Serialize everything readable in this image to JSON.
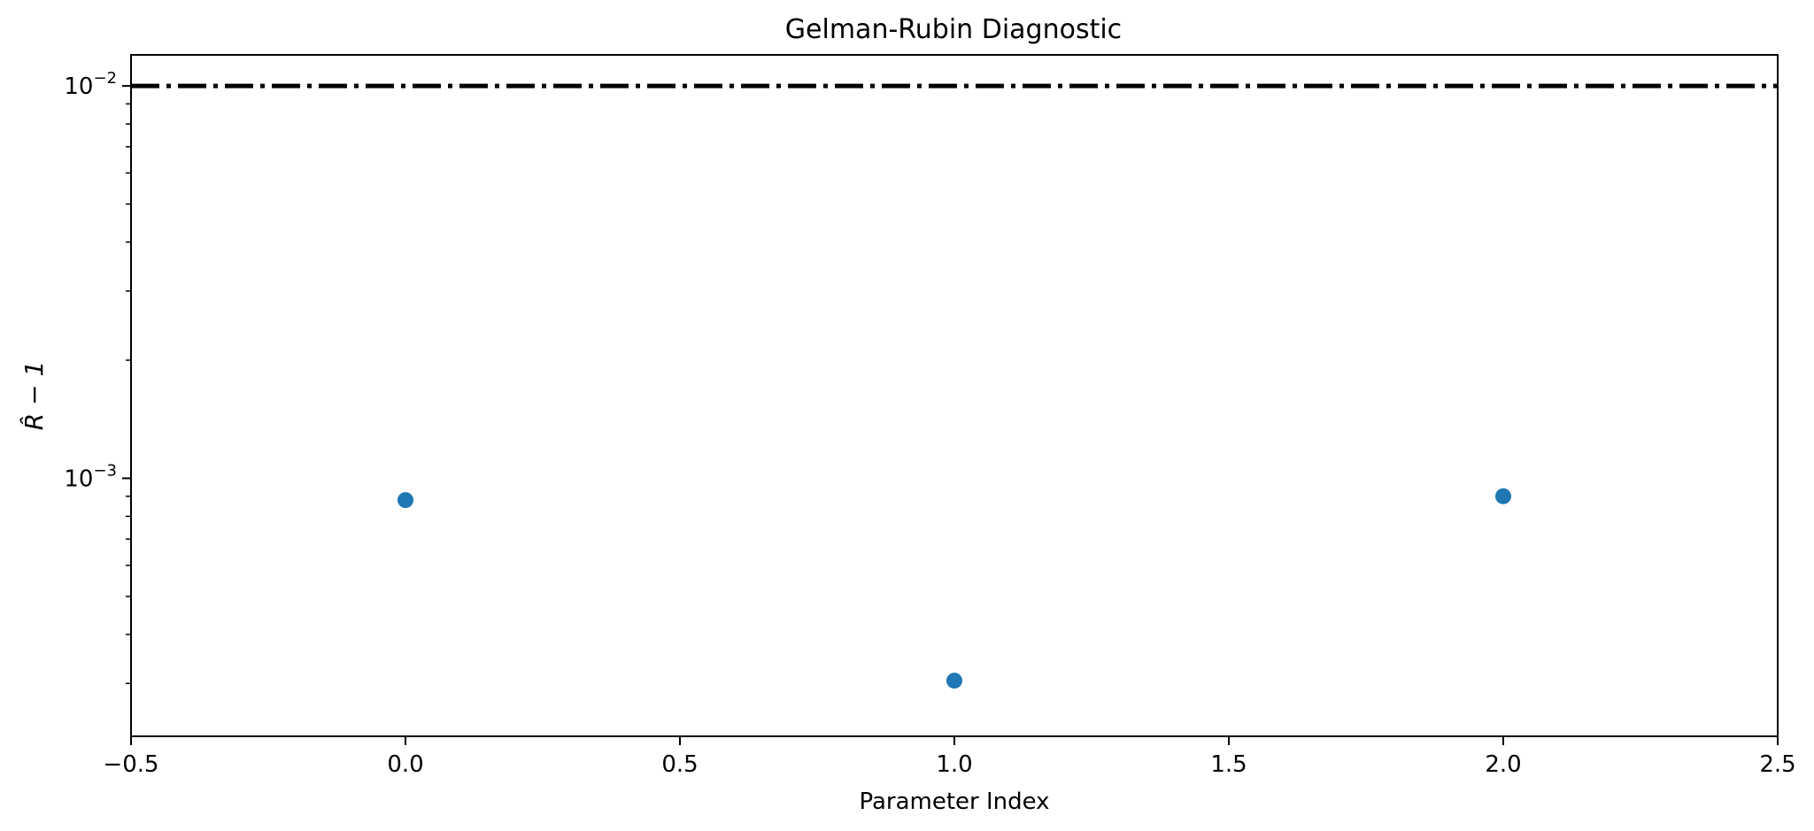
{
  "chart_data": {
    "type": "scatter",
    "title": "Gelman-Rubin Diagnostic",
    "xlabel": "Parameter Index",
    "ylabel": "R̂ − 1",
    "xlim": [
      -0.5,
      2.5
    ],
    "ylim": [
      0.00022,
      0.012
    ],
    "yscale": "log",
    "grid": false,
    "x_ticks": [
      -0.5,
      0.0,
      0.5,
      1.0,
      1.5,
      2.0,
      2.5
    ],
    "x_tick_labels": [
      "−0.5",
      "0.0",
      "0.5",
      "1.0",
      "1.5",
      "2.0",
      "2.5"
    ],
    "y_major_ticks": [
      {
        "value": 0.01,
        "base": "10",
        "exp": "−2"
      },
      {
        "value": 0.001,
        "base": "10",
        "exp": "−3"
      }
    ],
    "y_minor_ticks": [
      0.0003,
      0.0004,
      0.0005,
      0.0006,
      0.0007,
      0.0008,
      0.0009,
      0.002,
      0.003,
      0.004,
      0.005,
      0.006,
      0.007,
      0.008,
      0.009
    ],
    "series": [
      {
        "color": "#1f77b4",
        "x": [
          0,
          1,
          2
        ],
        "y": [
          0.00088,
          0.000305,
          0.0009
        ]
      }
    ],
    "reference_line": {
      "y": 0.01,
      "style": "dashdot",
      "color": "#000000"
    }
  }
}
